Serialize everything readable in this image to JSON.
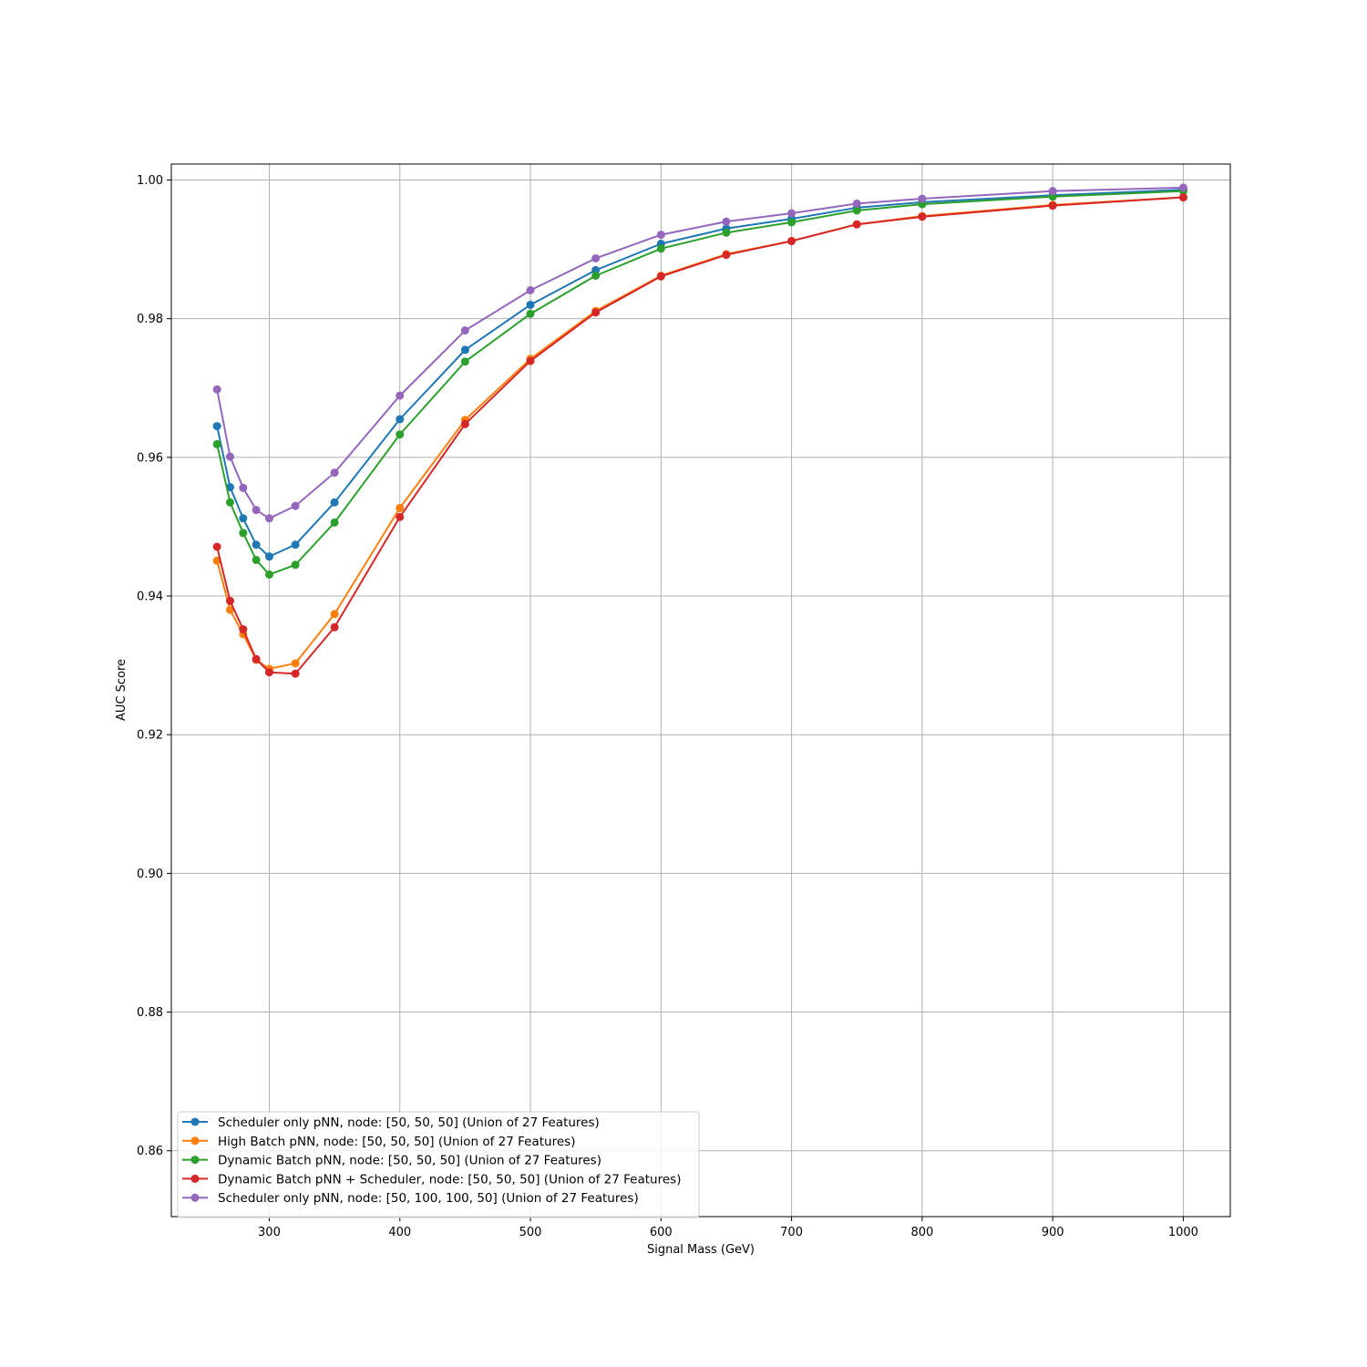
{
  "chart_data": {
    "type": "line",
    "xlabel": "Signal Mass (GeV)",
    "ylabel": "AUC Score",
    "xlim": [
      225,
      1036
    ],
    "ylim": [
      0.8505,
      1.0023
    ],
    "grid": true,
    "legend_position": "lower-left",
    "x_ticks": [
      300,
      400,
      500,
      600,
      700,
      800,
      900,
      1000
    ],
    "y_ticks": [
      0.86,
      0.88,
      0.9,
      0.92,
      0.94,
      0.96,
      0.98,
      1.0
    ],
    "x_tick_labels": [
      "300",
      "400",
      "500",
      "600",
      "700",
      "800",
      "900",
      "1000"
    ],
    "y_tick_labels": [
      "0.86",
      "0.88",
      "0.90",
      "0.92",
      "0.94",
      "0.96",
      "0.98",
      "1.00"
    ],
    "x": [
      260,
      270,
      280,
      290,
      300,
      320,
      350,
      400,
      450,
      500,
      550,
      600,
      650,
      700,
      750,
      800,
      900,
      1000
    ],
    "series": [
      {
        "name": "Scheduler only pNN, node: [50, 50, 50] (Union of 27 Features)",
        "color": "#1f77b4",
        "values": [
          0.9645,
          0.9557,
          0.9512,
          0.9474,
          0.9457,
          0.9474,
          0.9535,
          0.9655,
          0.9755,
          0.982,
          0.987,
          0.9908,
          0.993,
          0.9944,
          0.996,
          0.9968,
          0.9978,
          0.9986
        ]
      },
      {
        "name": "High Batch pNN, node: [50, 50, 50] (Union of 27 Features)",
        "color": "#ff7f0e",
        "values": [
          0.9451,
          0.938,
          0.9345,
          0.9308,
          0.9295,
          0.9303,
          0.9374,
          0.9527,
          0.9654,
          0.9742,
          0.9811,
          0.9862,
          0.9893,
          0.9912,
          0.9936,
          0.9948,
          0.9964,
          0.9975
        ]
      },
      {
        "name": "Dynamic Batch pNN, node: [50, 50, 50] (Union of 27 Features)",
        "color": "#2ca02c",
        "values": [
          0.9619,
          0.9535,
          0.9491,
          0.9452,
          0.9431,
          0.9445,
          0.9506,
          0.9633,
          0.9738,
          0.9807,
          0.9862,
          0.9901,
          0.9924,
          0.9939,
          0.9956,
          0.9965,
          0.9976,
          0.9984
        ]
      },
      {
        "name": "Dynamic Batch pNN + Scheduler, node: [50, 50, 50] (Union of 27 Features)",
        "color": "#d62728",
        "values": [
          0.9471,
          0.9393,
          0.9352,
          0.9309,
          0.929,
          0.9288,
          0.9355,
          0.9514,
          0.9648,
          0.9739,
          0.9809,
          0.9861,
          0.9892,
          0.9912,
          0.9936,
          0.9947,
          0.9963,
          0.9975
        ]
      },
      {
        "name": "Scheduler only pNN, node: [50, 100, 100, 50] (Union of 27 Features)",
        "color": "#9467bd",
        "values": [
          0.9698,
          0.9601,
          0.9556,
          0.9524,
          0.9512,
          0.953,
          0.9578,
          0.9689,
          0.9783,
          0.9841,
          0.9887,
          0.9921,
          0.994,
          0.9952,
          0.9966,
          0.9973,
          0.9984,
          0.9989
        ]
      }
    ]
  }
}
